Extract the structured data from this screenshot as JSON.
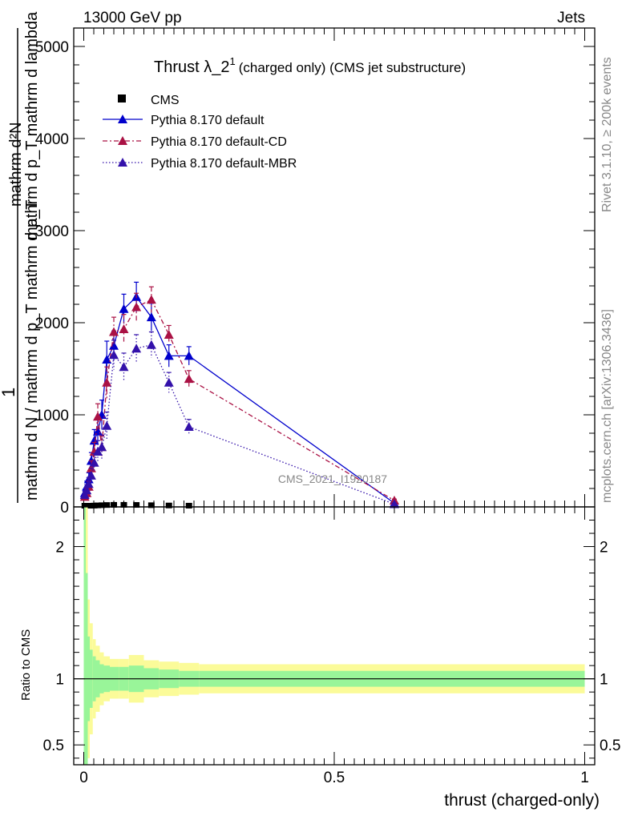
{
  "header": {
    "left": "13000 GeV pp",
    "right": "Jets",
    "title_main": "Thrust λ_2",
    "title_sup": "1",
    "title_tail": "(charged only) (CMS jet substructure)"
  },
  "side": {
    "rivet": "Rivet 3.1.10, ≥ 200k events",
    "mcplots": "mcplots.cern.ch [arXiv:1306.3436]"
  },
  "watermark": "CMS_2021_I1920187",
  "ylabel_main": {
    "one": "1",
    "denom": "mathrm d N / mathrm d p_T mathrm d p_T",
    "numer": "mathrm d²N",
    "numer_den": "mathrm d p_T mathrm d lambda"
  },
  "ratio_ylabel": "Ratio to CMS",
  "xlabel": "thrust (charged-only)",
  "colors": {
    "cms": "#000000",
    "default": "#0000cc",
    "cd": "#aa1144",
    "mbr": "#3311aa",
    "band_inner": "#99f599",
    "band_outer": "#fbfb99"
  },
  "chart_data": [
    {
      "type": "line",
      "panel": "main",
      "xlim": [
        -0.02,
        1.02
      ],
      "ylim": [
        0,
        5200
      ],
      "y_ticks": [
        {
          "v": 0,
          "label": "0"
        },
        {
          "v": 1000,
          "label": "1000"
        },
        {
          "v": 2000,
          "label": "2000"
        },
        {
          "v": 3000,
          "label": "3000"
        },
        {
          "v": 4000,
          "label": "4000"
        },
        {
          "v": 5000,
          "label": "5000"
        }
      ],
      "x_ticks": [
        0,
        0.5,
        1
      ],
      "legend": [
        "CMS",
        "Pythia 8.170 default",
        "Pythia 8.170 default-CD",
        "Pythia 8.170 default-MBR"
      ],
      "series": [
        {
          "name": "CMS",
          "style": "marker-square",
          "x": [
            0.002,
            0.006,
            0.01,
            0.015,
            0.021,
            0.028,
            0.036,
            0.046,
            0.06,
            0.08,
            0.105,
            0.135,
            0.17,
            0.21
          ],
          "y": [
            2,
            4,
            6,
            8,
            10,
            12,
            14,
            16,
            18,
            18,
            17,
            14,
            11,
            9
          ]
        },
        {
          "name": "Pythia 8.170 default",
          "style": "solid",
          "x": [
            0.002,
            0.006,
            0.01,
            0.015,
            0.021,
            0.028,
            0.036,
            0.046,
            0.06,
            0.08,
            0.105,
            0.135,
            0.17,
            0.21,
            0.62
          ],
          "y": [
            150,
            220,
            300,
            500,
            720,
            820,
            1000,
            1600,
            1750,
            2150,
            2280,
            2060,
            1640,
            1640,
            40
          ],
          "err": [
            40,
            60,
            70,
            90,
            120,
            140,
            160,
            200,
            160,
            160,
            160,
            150,
            120,
            100,
            15
          ]
        },
        {
          "name": "Pythia 8.170 default-CD",
          "style": "dashdot",
          "x": [
            0.002,
            0.006,
            0.01,
            0.015,
            0.021,
            0.028,
            0.036,
            0.046,
            0.06,
            0.08,
            0.105,
            0.135,
            0.17,
            0.21,
            0.62
          ],
          "y": [
            110,
            150,
            220,
            420,
            600,
            980,
            650,
            1350,
            1900,
            1930,
            2170,
            2250,
            1870,
            1390,
            70
          ],
          "err": [
            30,
            50,
            60,
            80,
            100,
            140,
            120,
            170,
            160,
            160,
            150,
            140,
            100,
            90,
            15
          ]
        },
        {
          "name": "Pythia 8.170 default-MBR",
          "style": "dotted",
          "x": [
            0.002,
            0.006,
            0.01,
            0.015,
            0.021,
            0.028,
            0.036,
            0.046,
            0.06,
            0.08,
            0.105,
            0.135,
            0.17,
            0.21,
            0.62
          ],
          "y": [
            130,
            180,
            250,
            340,
            480,
            600,
            650,
            880,
            1650,
            1520,
            1720,
            1760,
            1350,
            870,
            30
          ],
          "err": [
            40,
            60,
            70,
            80,
            100,
            120,
            130,
            150,
            160,
            150,
            150,
            140,
            110,
            80,
            10
          ]
        }
      ]
    },
    {
      "type": "area",
      "panel": "ratio",
      "ylim": [
        0.35,
        2.3
      ],
      "y_ticks": [
        {
          "v": 0.5,
          "label": "0.5"
        },
        {
          "v": 1,
          "label": "1"
        },
        {
          "v": 2,
          "label": "2"
        }
      ],
      "x_ticks": [
        {
          "v": 0,
          "label": "0"
        },
        {
          "v": 0.5,
          "label": "0.5"
        },
        {
          "v": 1,
          "label": "1"
        }
      ],
      "bin_edges": [
        0,
        0.004,
        0.008,
        0.012,
        0.018,
        0.024,
        0.032,
        0.04,
        0.052,
        0.07,
        0.09,
        0.12,
        0.15,
        0.19,
        0.23,
        1.0
      ],
      "inner_half_width": [
        1.5,
        0.8,
        0.32,
        0.22,
        0.17,
        0.14,
        0.11,
        0.1,
        0.09,
        0.09,
        0.1,
        0.08,
        0.07,
        0.06,
        0.06
      ],
      "outer_half_width": [
        2.5,
        1.5,
        0.6,
        0.42,
        0.3,
        0.25,
        0.2,
        0.17,
        0.15,
        0.15,
        0.18,
        0.14,
        0.13,
        0.12,
        0.11
      ]
    }
  ]
}
